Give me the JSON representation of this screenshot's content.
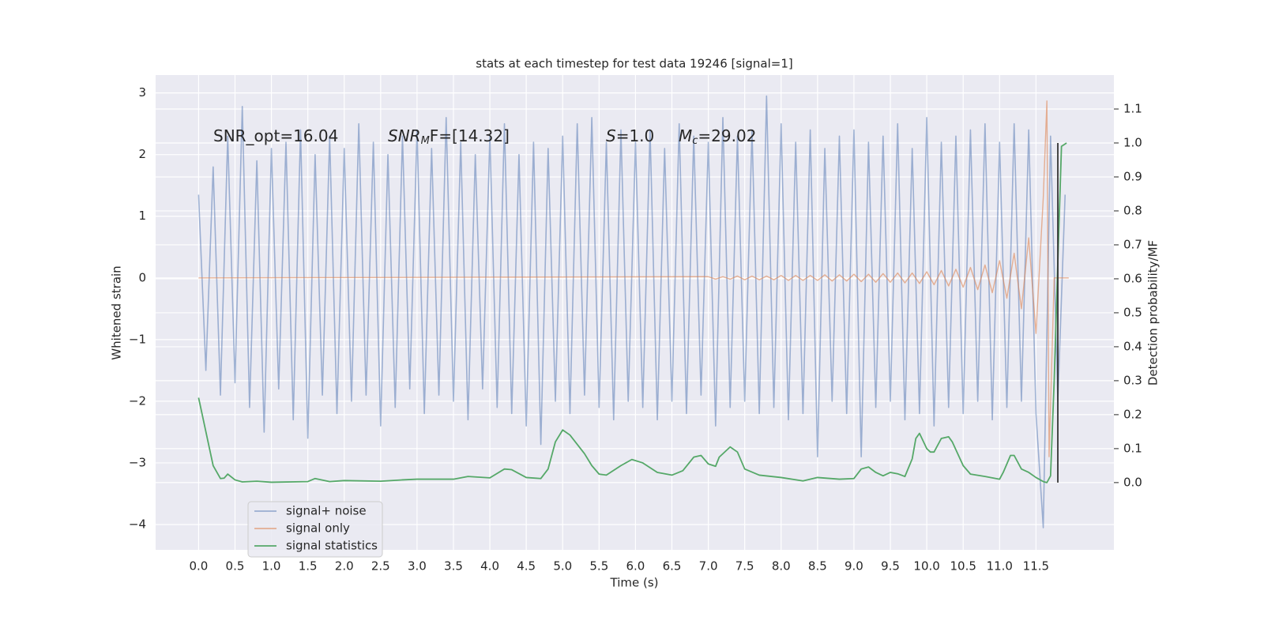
{
  "chart_data": {
    "type": "line",
    "title": "stats at each timestep for test data 19246 [signal=1]",
    "x_label": "Time (s)",
    "y_label": "Whitened strain",
    "y2_label": "Detection probability/MF",
    "xlim": [
      -0.59,
      12.57
    ],
    "ylim": [
      -4.41,
      3.29
    ],
    "y2lim": [
      -0.198,
      1.2
    ],
    "xticks": [
      {
        "value": 0,
        "label": "0.0"
      },
      0.5,
      {
        "value": 1,
        "label": "1.0"
      },
      1.5,
      {
        "value": 2,
        "label": "2.0"
      },
      2.5,
      {
        "value": 3,
        "label": "3.0"
      },
      3.5,
      {
        "value": 4,
        "label": "4.0"
      },
      4.5,
      {
        "value": 5,
        "label": "5.0"
      },
      5.5,
      {
        "value": 6,
        "label": "6.0"
      },
      6.5,
      {
        "value": 7,
        "label": "7.0"
      },
      7.5,
      {
        "value": 8,
        "label": "8.0"
      },
      8.5,
      {
        "value": 9,
        "label": "9.0"
      },
      9.5,
      {
        "value": 10,
        "label": "10.0"
      },
      10.5,
      {
        "value": 11,
        "label": "11.0"
      },
      11.5
    ],
    "yticks": [
      {
        "value": -4,
        "label": "−4"
      },
      {
        "value": -3,
        "label": "−3"
      },
      {
        "value": -2,
        "label": "−2"
      },
      {
        "value": -1,
        "label": "−1"
      },
      0,
      1,
      2,
      3
    ],
    "y2ticks": [
      {
        "value": 0,
        "label": "0.0"
      },
      0.1,
      0.2,
      0.3,
      0.4,
      0.5,
      0.6,
      0.7,
      0.8,
      0.9,
      {
        "value": 1,
        "label": "1.0"
      },
      1.1
    ],
    "grid": true,
    "legend": "lower left",
    "series": [
      {
        "name": "signal+ noise",
        "color": "#4c72b0",
        "x": [
          0.0,
          0.1,
          0.2,
          0.3,
          0.4,
          0.5,
          0.6,
          0.7,
          0.8,
          0.9,
          1.0,
          1.1,
          1.2,
          1.3,
          1.4,
          1.5,
          1.6,
          1.7,
          1.8,
          1.9,
          2.0,
          2.1,
          2.2,
          2.3,
          2.4,
          2.5,
          2.6,
          2.7,
          2.8,
          2.9,
          3.0,
          3.1,
          3.2,
          3.3,
          3.4,
          3.5,
          3.6,
          3.7,
          3.8,
          3.9,
          4.0,
          4.1,
          4.2,
          4.3,
          4.4,
          4.5,
          4.6,
          4.7,
          4.8,
          4.9,
          5.0,
          5.1,
          5.2,
          5.3,
          5.4,
          5.5,
          5.6,
          5.7,
          5.8,
          5.9,
          6.0,
          6.1,
          6.2,
          6.3,
          6.4,
          6.5,
          6.6,
          6.7,
          6.8,
          6.9,
          7.0,
          7.1,
          7.2,
          7.3,
          7.4,
          7.5,
          7.6,
          7.7,
          7.8,
          7.9,
          8.0,
          8.1,
          8.2,
          8.3,
          8.4,
          8.5,
          8.6,
          8.7,
          8.8,
          8.9,
          9.0,
          9.1,
          9.2,
          9.3,
          9.4,
          9.5,
          9.6,
          9.7,
          9.8,
          9.9,
          10.0,
          10.1,
          10.2,
          10.3,
          10.4,
          10.5,
          10.6,
          10.7,
          10.8,
          10.9,
          11.0,
          11.1,
          11.2,
          11.3,
          11.4,
          11.5,
          11.6,
          11.7,
          11.8,
          11.9
        ],
        "values": [
          1.35,
          -1.5,
          1.8,
          -1.9,
          2.3,
          -1.7,
          2.78,
          -2.1,
          1.9,
          -2.5,
          2.1,
          -1.8,
          2.2,
          -2.3,
          2.4,
          -2.6,
          2.0,
          -1.9,
          2.3,
          -2.2,
          2.1,
          -2.0,
          2.5,
          -1.9,
          2.2,
          -2.4,
          2.0,
          -2.1,
          2.3,
          -1.8,
          2.4,
          -2.2,
          2.1,
          -1.9,
          2.6,
          -2.0,
          2.2,
          -2.3,
          2.0,
          -1.8,
          2.3,
          -2.1,
          2.5,
          -2.2,
          2.0,
          -2.4,
          2.2,
          -2.7,
          2.1,
          -2.0,
          2.3,
          -2.2,
          2.5,
          -1.9,
          2.6,
          -2.1,
          2.2,
          -2.3,
          2.4,
          -2.0,
          2.2,
          -2.1,
          2.4,
          -2.3,
          2.1,
          -2.0,
          2.5,
          -2.2,
          2.3,
          -1.9,
          2.2,
          -2.4,
          2.6,
          -2.1,
          2.3,
          -2.0,
          2.4,
          -2.2,
          2.95,
          -2.1,
          2.5,
          -2.3,
          2.2,
          -2.2,
          2.4,
          -2.9,
          2.1,
          -2.0,
          2.3,
          -2.2,
          2.4,
          -2.9,
          2.2,
          -2.1,
          2.3,
          -2.0,
          2.5,
          -2.3,
          2.1,
          -2.2,
          2.6,
          -2.4,
          2.2,
          -2.1,
          2.3,
          -2.2,
          2.4,
          -2.0,
          2.5,
          -2.3,
          2.2,
          -2.1,
          2.5,
          -2.0,
          2.4,
          -2.2,
          -4.05,
          2.3,
          -2.0,
          1.35
        ]
      },
      {
        "name": "signal only",
        "color": "#dd8452",
        "x": [
          0.0,
          7.0,
          7.1,
          7.2,
          7.3,
          7.4,
          7.5,
          7.6,
          7.7,
          7.8,
          7.9,
          8.0,
          8.1,
          8.2,
          8.3,
          8.4,
          8.5,
          8.6,
          8.7,
          8.8,
          8.9,
          9.0,
          9.1,
          9.2,
          9.3,
          9.4,
          9.5,
          9.6,
          9.7,
          9.8,
          9.9,
          10.0,
          10.1,
          10.2,
          10.3,
          10.4,
          10.5,
          10.6,
          10.7,
          10.8,
          10.9,
          11.0,
          11.1,
          11.2,
          11.3,
          11.4,
          11.5,
          11.6,
          11.65,
          11.68,
          11.75,
          11.95
        ],
        "values": [
          0,
          0.02,
          -0.02,
          0.02,
          -0.02,
          0.03,
          -0.03,
          0.03,
          -0.03,
          0.03,
          -0.03,
          0.04,
          -0.04,
          0.04,
          -0.04,
          0.04,
          -0.04,
          0.05,
          -0.05,
          0.05,
          -0.05,
          0.06,
          -0.06,
          0.06,
          -0.07,
          0.07,
          -0.07,
          0.08,
          -0.08,
          0.08,
          -0.09,
          0.1,
          -0.11,
          0.12,
          -0.13,
          0.14,
          -0.15,
          0.17,
          -0.19,
          0.21,
          -0.24,
          0.28,
          -0.33,
          0.4,
          -0.5,
          0.65,
          -0.9,
          1.3,
          2.87,
          -2.9,
          0,
          0
        ]
      },
      {
        "name": "signal statistics",
        "color": "#55a868",
        "axis": "y2",
        "x": [
          0.0,
          0.1,
          0.2,
          0.3,
          0.35,
          0.4,
          0.5,
          0.6,
          0.8,
          1.0,
          1.5,
          1.6,
          1.8,
          2.0,
          2.5,
          2.8,
          3.0,
          3.5,
          3.7,
          4.0,
          4.2,
          4.3,
          4.5,
          4.7,
          4.8,
          4.9,
          5.0,
          5.1,
          5.3,
          5.4,
          5.5,
          5.6,
          5.8,
          5.95,
          6.1,
          6.3,
          6.5,
          6.65,
          6.8,
          6.9,
          7.0,
          7.1,
          7.15,
          7.3,
          7.4,
          7.5,
          7.7,
          8.0,
          8.3,
          8.5,
          8.8,
          9.0,
          9.1,
          9.2,
          9.3,
          9.4,
          9.5,
          9.6,
          9.7,
          9.8,
          9.85,
          9.9,
          10.0,
          10.05,
          10.1,
          10.2,
          10.3,
          10.35,
          10.5,
          10.6,
          10.8,
          11.0,
          11.05,
          11.15,
          11.2,
          11.3,
          11.4,
          11.5,
          11.6,
          11.65,
          11.7,
          11.75,
          11.8,
          11.85,
          11.92
        ],
        "values": [
          0.25,
          0.15,
          0.05,
          0.012,
          0.013,
          0.025,
          0.008,
          0.002,
          0.004,
          0.001,
          0.003,
          0.012,
          0.003,
          0.006,
          0.004,
          0.008,
          0.01,
          0.01,
          0.018,
          0.014,
          0.04,
          0.038,
          0.015,
          0.012,
          0.04,
          0.12,
          0.155,
          0.14,
          0.085,
          0.05,
          0.025,
          0.022,
          0.05,
          0.068,
          0.058,
          0.03,
          0.022,
          0.035,
          0.075,
          0.08,
          0.055,
          0.048,
          0.075,
          0.105,
          0.09,
          0.04,
          0.022,
          0.015,
          0.005,
          0.015,
          0.01,
          0.012,
          0.04,
          0.046,
          0.03,
          0.02,
          0.03,
          0.026,
          0.018,
          0.07,
          0.13,
          0.145,
          0.1,
          0.09,
          0.09,
          0.13,
          0.135,
          0.12,
          0.05,
          0.025,
          0.018,
          0.01,
          0.03,
          0.08,
          0.08,
          0.04,
          0.03,
          0.015,
          0.003,
          0.0,
          0.02,
          0.3,
          0.65,
          0.99,
          1.0
        ]
      }
    ],
    "vline": {
      "x": 11.8,
      "ymin": 0,
      "ymax": 1,
      "color": "#333333"
    },
    "annotations": [
      {
        "text": "SNR_opt=16.04"
      },
      {
        "base": "SNR",
        "sub": "M",
        "rest": "F=[14.32]"
      },
      {
        "base": "S",
        "rest": "=1.0"
      },
      {
        "base": "M",
        "sub": "c",
        "rest": "=29.02"
      }
    ]
  }
}
